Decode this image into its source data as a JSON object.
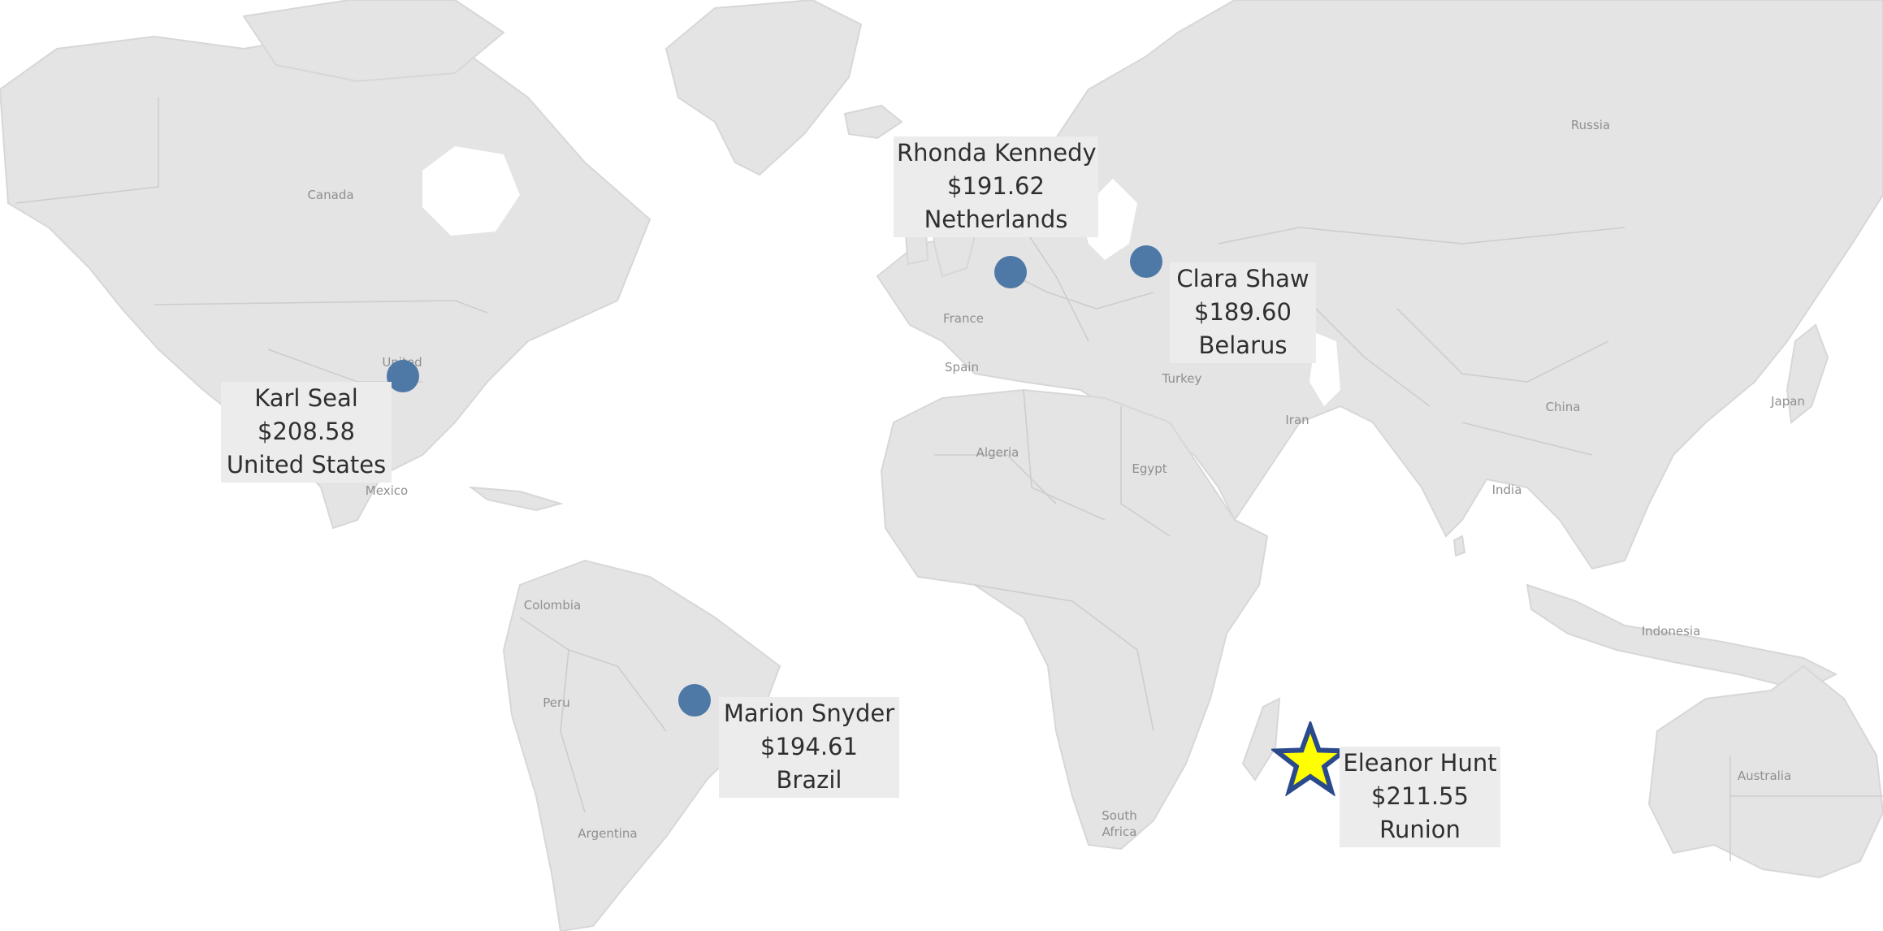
{
  "map": {
    "country_labels": [
      {
        "id": "canada",
        "text": "Canada"
      },
      {
        "id": "united-states",
        "text": "United"
      },
      {
        "id": "mexico",
        "text": "Mexico"
      },
      {
        "id": "colombia",
        "text": "Colombia"
      },
      {
        "id": "peru",
        "text": "Peru"
      },
      {
        "id": "argentina",
        "text": "Argentina"
      },
      {
        "id": "russia",
        "text": "Russia"
      },
      {
        "id": "france",
        "text": "France"
      },
      {
        "id": "spain",
        "text": "Spain"
      },
      {
        "id": "turkey",
        "text": "Turkey"
      },
      {
        "id": "iran",
        "text": "Iran"
      },
      {
        "id": "china",
        "text": "China"
      },
      {
        "id": "japan",
        "text": "Japan"
      },
      {
        "id": "india",
        "text": "India"
      },
      {
        "id": "indonesia",
        "text": "Indonesia"
      },
      {
        "id": "algeria",
        "text": "Algeria"
      },
      {
        "id": "egypt",
        "text": "Egypt"
      },
      {
        "id": "south-africa-line1",
        "text": "South"
      },
      {
        "id": "south-africa-line2",
        "text": "Africa"
      },
      {
        "id": "australia",
        "text": "Australia"
      }
    ],
    "marks": [
      {
        "id": "rhonda-kennedy",
        "customer": "Rhonda Kennedy",
        "amount": "$191.62",
        "country": "Netherlands",
        "shape": "circle",
        "lon": 5.3,
        "lat": 52.1
      },
      {
        "id": "clara-shaw",
        "customer": "Clara Shaw",
        "amount": "$189.60",
        "country": "Belarus",
        "shape": "circle",
        "lon": 27.9,
        "lat": 53.7
      },
      {
        "id": "karl-seal",
        "customer": "Karl Seal",
        "amount": "$208.58",
        "country": "United States",
        "shape": "circle",
        "lon": -97.0,
        "lat": 39.5
      },
      {
        "id": "marion-snyder",
        "customer": "Marion Snyder",
        "amount": "$194.61",
        "country": "Brazil",
        "shape": "circle",
        "lon": -52.0,
        "lat": -10.5
      },
      {
        "id": "eleanor-hunt",
        "customer": "Eleanor Hunt",
        "amount": "$211.55",
        "country": "Runion",
        "shape": "star",
        "lon": 55.5,
        "lat": -21.1
      }
    ],
    "colors": {
      "circle_mark": "#4e79a7",
      "star_fill": "#ffff00",
      "star_outline": "#2b4a8c",
      "land": "#e4e4e4",
      "water": "#ffffff",
      "label_box": "#ececec"
    }
  }
}
